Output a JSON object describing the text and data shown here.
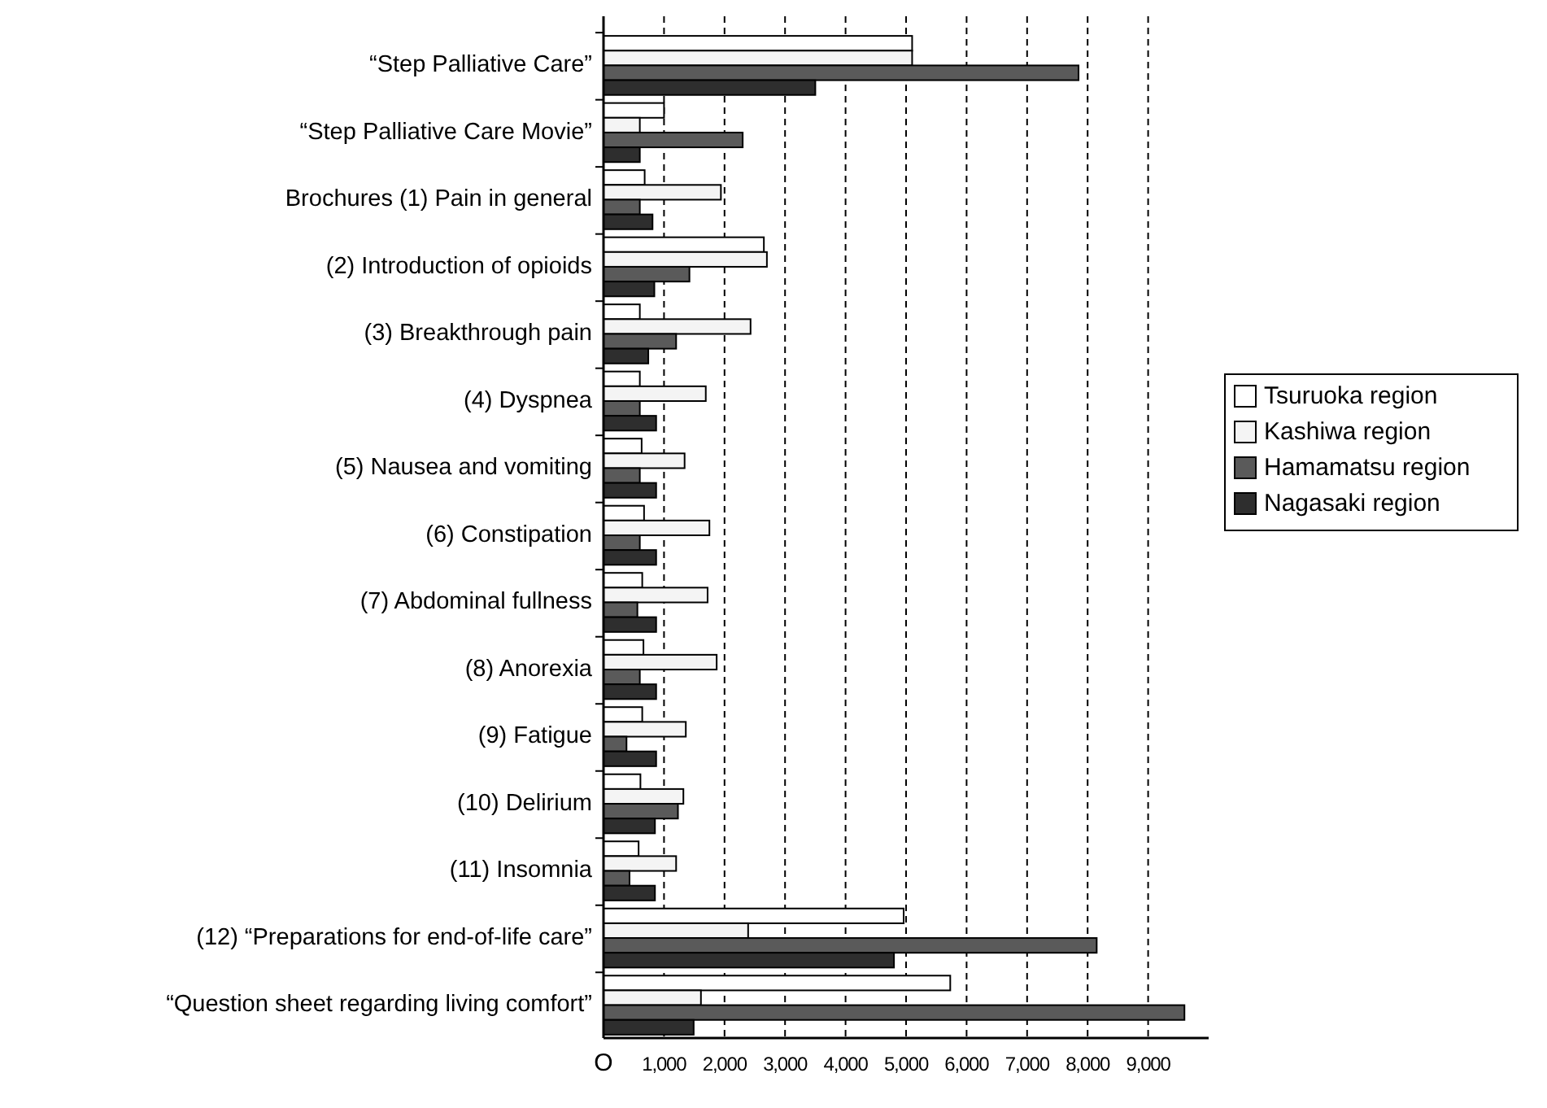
{
  "chart_data": {
    "type": "bar",
    "orientation": "horizontal",
    "categories": [
      "“Step Palliative Care”",
      "“Step Palliative Care Movie”",
      "Brochures (1) Pain in general",
      "(2) Introduction of opioids",
      "(3) Breakthrough pain",
      "(4) Dyspnea",
      "(5) Nausea and vomiting",
      "(6) Constipation",
      "(7) Abdominal fullness",
      "(8) Anorexia",
      "(9) Fatigue",
      "(10) Delirium",
      "(11) Insomnia",
      "(12) “Preparations for end-of-life care”",
      "“Question sheet regarding living comfort”"
    ],
    "series": [
      {
        "name": "Tsuruoka region",
        "color": "#ffffff",
        "values": [
          5100,
          1000,
          680,
          2650,
          600,
          600,
          630,
          670,
          640,
          660,
          640,
          610,
          580,
          4960,
          5730
        ]
      },
      {
        "name": "Kashiwa region",
        "color": "#f4f4f4",
        "values": [
          5100,
          600,
          1940,
          2700,
          2430,
          1690,
          1340,
          1750,
          1720,
          1870,
          1360,
          1320,
          1200,
          2390,
          1610
        ]
      },
      {
        "name": "Hamamatsu region",
        "color": "#5a5a5a",
        "values": [
          7850,
          2300,
          600,
          1420,
          1200,
          600,
          600,
          600,
          560,
          600,
          380,
          1230,
          430,
          8150,
          9600
        ]
      },
      {
        "name": "Nagasaki region",
        "color": "#2e2e2e",
        "values": [
          3500,
          600,
          810,
          840,
          740,
          870,
          870,
          870,
          870,
          870,
          870,
          850,
          850,
          4800,
          1490
        ]
      }
    ],
    "xlim": [
      0,
      10000
    ],
    "xticks": [
      {
        "value": 0,
        "label": "O"
      },
      {
        "value": 1000,
        "label": "1,000"
      },
      {
        "value": 2000,
        "label": "2,000"
      },
      {
        "value": 3000,
        "label": "3,000"
      },
      {
        "value": 4000,
        "label": "4,000"
      },
      {
        "value": 5000,
        "label": "5,000"
      },
      {
        "value": 6000,
        "label": "6,000"
      },
      {
        "value": 7000,
        "label": "7,000"
      },
      {
        "value": 8000,
        "label": "8,000"
      },
      {
        "value": 9000,
        "label": "9,000"
      }
    ],
    "grid": "x",
    "legend": "right"
  }
}
